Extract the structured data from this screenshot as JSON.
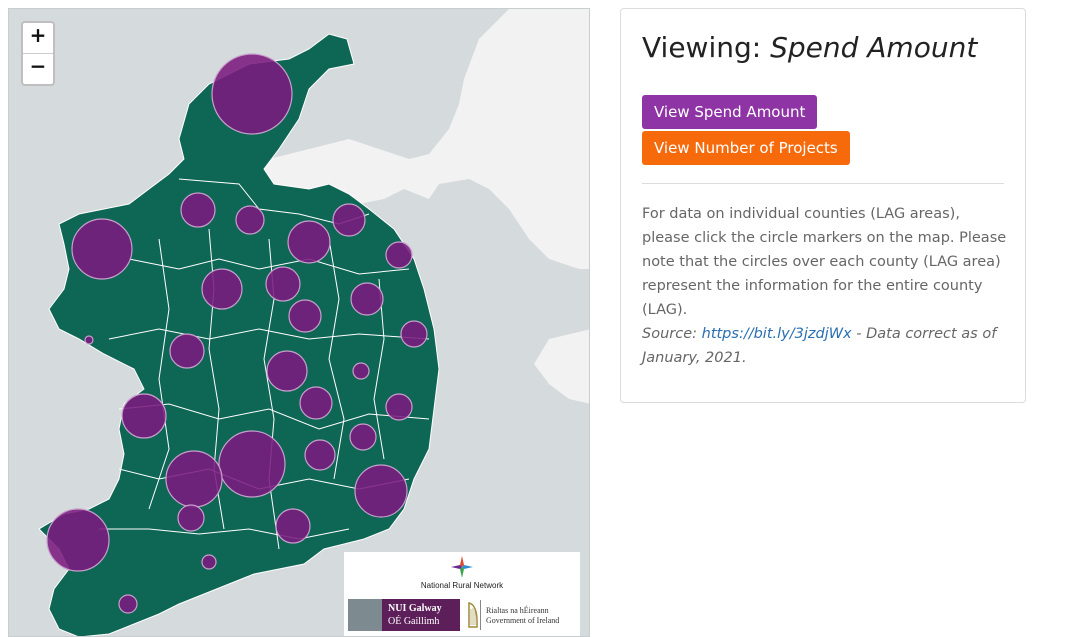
{
  "map": {
    "zoom_in_label": "+",
    "zoom_out_label": "−",
    "colors": {
      "sea": "#d5dadc",
      "land_other": "#f2f2f2",
      "ireland": "#0e6655",
      "marker": "#7b1a7e",
      "marker_stroke": "#c8a0cc"
    },
    "logos": {
      "network_name": "National Rural Network",
      "university_line1": "NUI Galway",
      "university_line2": "OÉ Gaillimh",
      "government_line1": "Rialtas na hÉireann",
      "government_line2": "Government of Ireland"
    }
  },
  "panel": {
    "heading_prefix": "Viewing: ",
    "heading_mode": "Spend Amount",
    "buttons": {
      "spend": "View Spend Amount",
      "projects": "View Number of Projects"
    },
    "description": "For data on individual counties (LAG areas), please click the circle markers on the map. Please note that the circles over each county (LAG area) represent the information for the entire county (LAG).",
    "source_prefix": "Source: ",
    "source_link": "https://bit.ly/3jzdjWx",
    "source_suffix": " - Data correct as of January, 2021."
  }
}
